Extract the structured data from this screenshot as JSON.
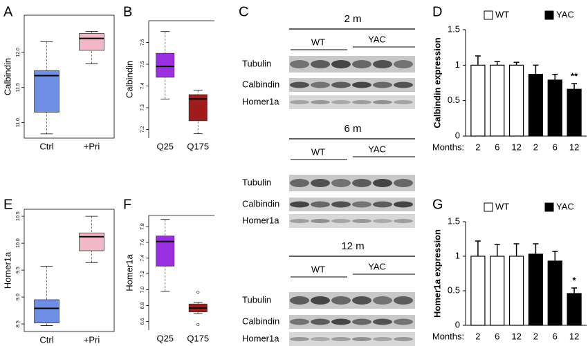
{
  "chart_data": [
    {
      "type": "box",
      "panel": "A",
      "ylabel": "Calbindin",
      "categories": [
        "Ctrl",
        "+Pri"
      ],
      "colors": [
        "#6f8fe6",
        "#f2b8c8"
      ],
      "min": [
        10.84,
        11.84
      ],
      "q1": [
        11.15,
        12.03
      ],
      "median": [
        11.67,
        12.2
      ],
      "q3": [
        11.74,
        12.27
      ],
      "max": [
        12.15,
        12.3
      ],
      "ylim": [
        10.78,
        12.53
      ],
      "yticks": [
        {
          "value": 11,
          "label": "11.0"
        },
        {
          "value": 11.5,
          "label": "11.5"
        },
        {
          "value": 12,
          "label": "12.0"
        }
      ]
    },
    {
      "type": "box",
      "panel": "B",
      "ylabel": "Calbindin",
      "categories": [
        "Q25",
        "Q175"
      ],
      "colors": [
        "#9b30e0",
        "#a01c1c"
      ],
      "min": [
        7.34,
        7.18
      ],
      "q1": [
        7.44,
        7.24
      ],
      "median": [
        7.49,
        7.34
      ],
      "q3": [
        7.55,
        7.36
      ],
      "max": [
        7.65,
        7.38
      ],
      "ylim": [
        7.16,
        7.7
      ],
      "yticks": [
        7.2,
        7.3,
        7.4,
        7.5,
        7.6
      ]
    },
    {
      "type": "bar",
      "panel": "D",
      "ylabel": "Calbindin expression",
      "x_label": "Months:",
      "categories": [
        "2",
        "6",
        "12",
        "2",
        "6",
        "12"
      ],
      "series": [
        {
          "name": "WT",
          "color": "#ffffff",
          "values": [
            1.0,
            1.0,
            1.0,
            null,
            null,
            null
          ],
          "errors": [
            0.13,
            0.05,
            0.04,
            null,
            null,
            null
          ]
        },
        {
          "name": "YAC",
          "color": "#000000",
          "values": [
            null,
            null,
            null,
            0.87,
            0.79,
            0.66
          ],
          "errors": [
            null,
            null,
            null,
            0.13,
            0.08,
            0.08
          ],
          "annotations": [
            null,
            null,
            null,
            null,
            null,
            "**"
          ]
        }
      ],
      "ylim": [
        0,
        1.5
      ],
      "yticks": [
        0,
        0.5,
        1,
        1.5
      ]
    },
    {
      "type": "box",
      "panel": "E",
      "ylabel": "Homer1a",
      "categories": [
        "Ctrl",
        "+Pri"
      ],
      "colors": [
        "#6f8fe6",
        "#f2b8c8"
      ],
      "min": [
        8.47,
        9.64
      ],
      "q1": [
        8.52,
        9.86
      ],
      "median": [
        8.79,
        10.12
      ],
      "q3": [
        8.95,
        10.19
      ],
      "max": [
        9.57,
        10.5
      ],
      "ylim": [
        8.36,
        10.63
      ],
      "yticks": [
        8.5,
        {
          "value": 9,
          "label": "9.0"
        },
        9.5,
        {
          "value": 10,
          "label": "10.0"
        },
        10.5
      ]
    },
    {
      "type": "box",
      "panel": "F",
      "ylabel": "Homer1a",
      "categories": [
        "Q25",
        "Q175"
      ],
      "colors": [
        "#9b30e0",
        "#a01c1c"
      ],
      "min": [
        6.98,
        6.7
      ],
      "q1": [
        7.3,
        6.72
      ],
      "median": [
        7.61,
        6.77
      ],
      "q3": [
        7.68,
        6.82
      ],
      "max": [
        7.89,
        6.84
      ],
      "outliers": [
        [],
        [
          6.97,
          6.56
        ]
      ],
      "ylim": [
        6.49,
        7.94
      ],
      "yticks": [
        6.6,
        6.8,
        {
          "value": 7,
          "label": "7.0"
        },
        7.2,
        7.4,
        7.6,
        7.8
      ]
    },
    {
      "type": "bar",
      "panel": "G",
      "ylabel": "Homer1a expression",
      "x_label": "Months:",
      "categories": [
        "2",
        "6",
        "12",
        "2",
        "6",
        "12"
      ],
      "series": [
        {
          "name": "WT",
          "color": "#ffffff",
          "values": [
            1.0,
            1.0,
            1.0,
            null,
            null,
            null
          ],
          "errors": [
            0.22,
            0.17,
            0.18,
            null,
            null,
            null
          ]
        },
        {
          "name": "YAC",
          "color": "#000000",
          "values": [
            null,
            null,
            null,
            1.03,
            0.93,
            0.46
          ],
          "errors": [
            null,
            null,
            null,
            0.15,
            0.14,
            0.08
          ],
          "annotations": [
            null,
            null,
            null,
            null,
            null,
            "*"
          ]
        }
      ],
      "ylim": [
        0,
        1.5
      ],
      "yticks": [
        0,
        0.5,
        1,
        1.5
      ]
    }
  ],
  "blots": {
    "panel": "C",
    "sections": [
      {
        "title": "2 m",
        "groups": [
          "WT",
          "YAC"
        ],
        "rows": [
          "Tubulin",
          "Calbindin",
          "Homer1a"
        ]
      },
      {
        "title": "6 m",
        "groups": [
          "WT",
          "YAC"
        ],
        "rows": [
          "Tubulin",
          "Calbindin",
          "Homer1a"
        ]
      },
      {
        "title": "12 m",
        "groups": [
          "WT",
          "YAC"
        ],
        "rows": [
          "Tubulin",
          "Calbindin",
          "Homer1a"
        ]
      }
    ]
  }
}
